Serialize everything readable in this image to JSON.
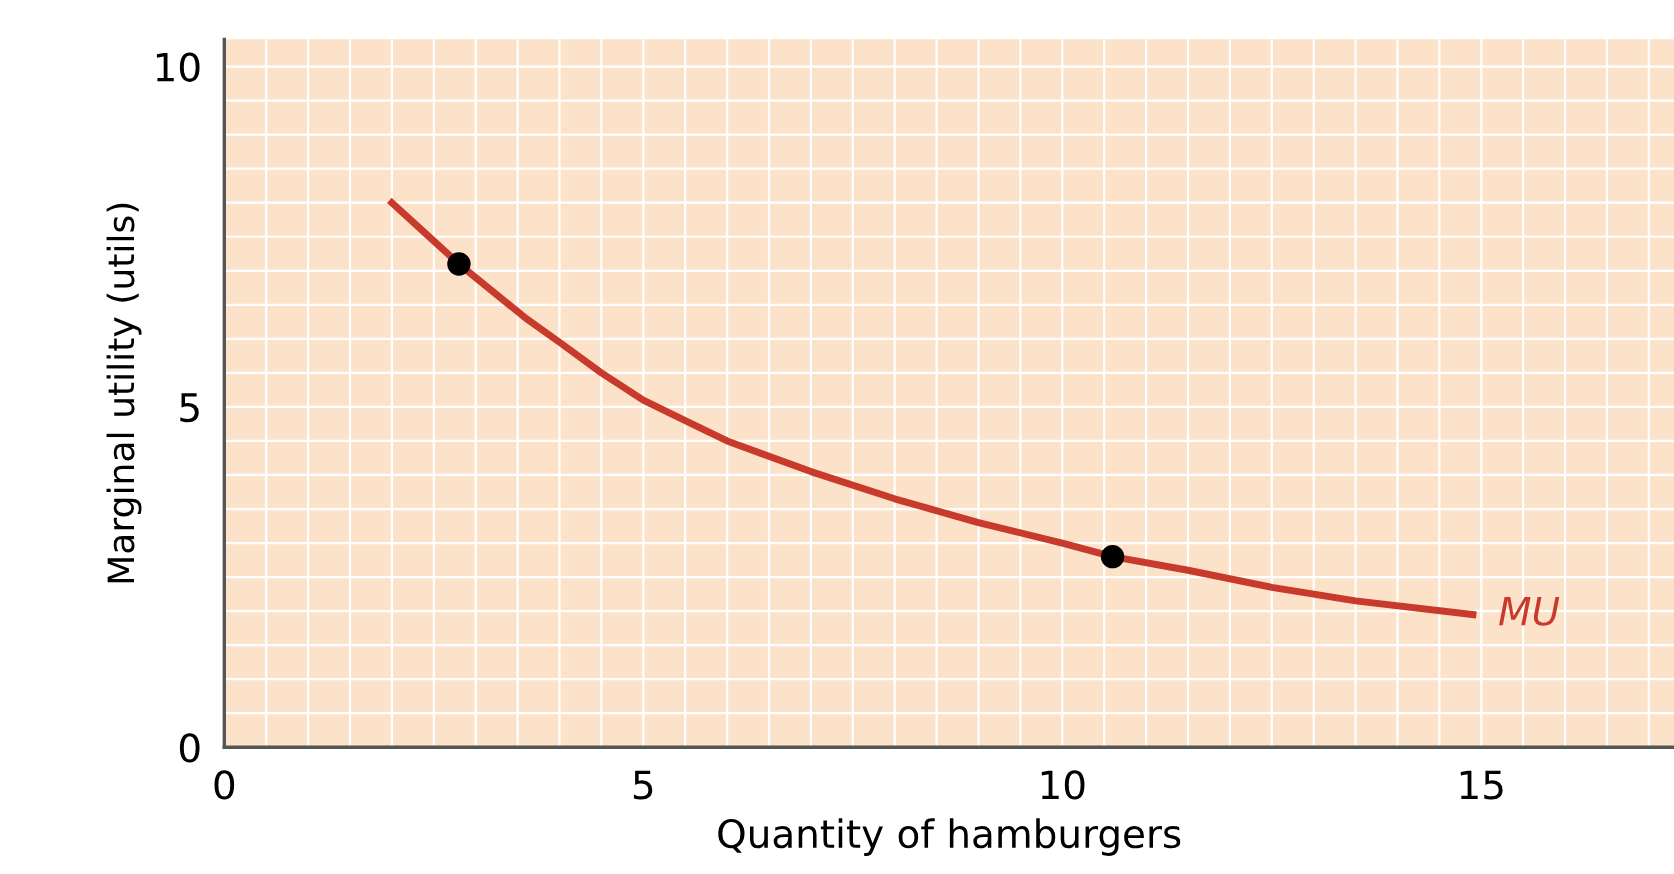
{
  "chart_data": {
    "type": "line",
    "xlabel": "Quantity of hamburgers",
    "ylabel": "Marginal utility (utils)",
    "series": [
      {
        "name": "MU",
        "color": "#c73a2c",
        "marker": "none",
        "x": [
          2.0,
          2.4,
          2.8,
          3.2,
          3.6,
          4.0,
          4.5,
          5.0,
          5.5,
          6.0,
          7.0,
          8.0,
          9.0,
          10.0,
          10.6,
          11.5,
          12.5,
          13.5,
          14.9
        ],
        "values": [
          8.0,
          7.55,
          7.1,
          6.7,
          6.3,
          5.95,
          5.5,
          5.1,
          4.8,
          4.5,
          4.05,
          3.65,
          3.3,
          3.0,
          2.8,
          2.6,
          2.35,
          2.15,
          1.95
        ]
      },
      {
        "type": "scatter",
        "marker": "circle",
        "color": "#000000",
        "x": [
          2.8,
          10.6
        ],
        "values": [
          7.1,
          2.8
        ]
      }
    ],
    "xlim": [
      0,
      17.3
    ],
    "ylim": [
      0,
      10.4
    ],
    "xticks": [
      0,
      5,
      10,
      15
    ],
    "yticks": [
      0,
      5,
      10
    ],
    "grid": true,
    "legend": false,
    "line_style": "solid"
  }
}
